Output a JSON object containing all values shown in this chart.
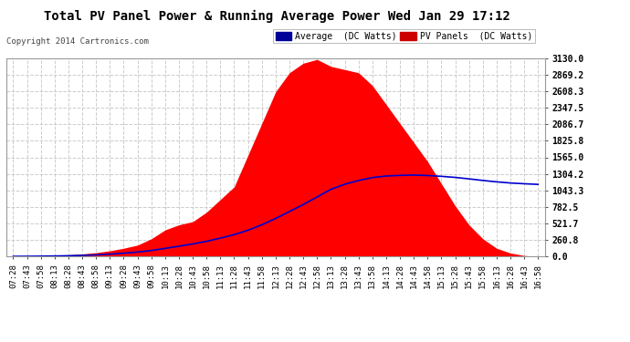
{
  "title": "Total PV Panel Power & Running Average Power Wed Jan 29 17:12",
  "copyright": "Copyright 2014 Cartronics.com",
  "ylim": [
    0.0,
    3130.0
  ],
  "yticks": [
    0.0,
    260.8,
    521.7,
    782.5,
    1043.3,
    1304.2,
    1565.0,
    1825.8,
    2086.7,
    2347.5,
    2608.3,
    2869.2,
    3130.0
  ],
  "bg_color": "#ffffff",
  "plot_bg_color": "#ffffff",
  "grid_color": "#cccccc",
  "pv_color": "#ff0000",
  "avg_color": "#0000cc",
  "x_labels": [
    "07:28",
    "07:43",
    "07:58",
    "08:13",
    "08:28",
    "08:43",
    "08:58",
    "09:13",
    "09:28",
    "09:43",
    "09:58",
    "10:13",
    "10:28",
    "10:43",
    "10:58",
    "11:13",
    "11:28",
    "11:43",
    "11:58",
    "12:13",
    "12:28",
    "12:43",
    "12:58",
    "13:13",
    "13:28",
    "13:43",
    "13:58",
    "14:13",
    "14:28",
    "14:43",
    "14:58",
    "15:13",
    "15:28",
    "15:43",
    "15:58",
    "16:13",
    "16:28",
    "16:43",
    "16:58"
  ],
  "pv_values": [
    2,
    4,
    8,
    15,
    25,
    40,
    60,
    90,
    130,
    180,
    280,
    420,
    500,
    550,
    700,
    900,
    1100,
    1600,
    2100,
    2600,
    2900,
    3050,
    3110,
    3000,
    2950,
    2900,
    2700,
    2400,
    2100,
    1800,
    1500,
    1150,
    800,
    500,
    280,
    130,
    55,
    15,
    3
  ],
  "avg_values": [
    2,
    3,
    5,
    8,
    12,
    18,
    26,
    37,
    52,
    70,
    95,
    128,
    162,
    198,
    240,
    290,
    345,
    415,
    500,
    600,
    710,
    820,
    940,
    1060,
    1140,
    1200,
    1245,
    1270,
    1280,
    1285,
    1278,
    1265,
    1248,
    1225,
    1200,
    1178,
    1160,
    1148,
    1138
  ],
  "title_fontsize": 10,
  "copyright_fontsize": 6.5,
  "tick_fontsize": 6.5,
  "ytick_fontsize": 7
}
